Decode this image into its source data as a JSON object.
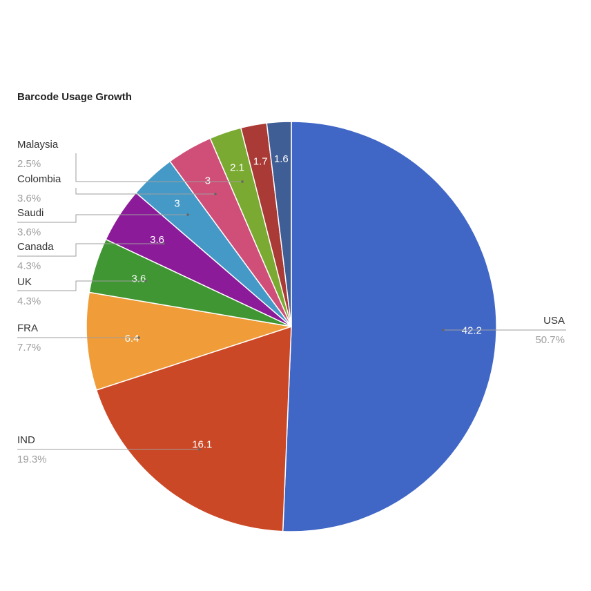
{
  "chart_data": {
    "type": "pie",
    "title": "Barcode Usage Growth",
    "slices": [
      {
        "label": "USA",
        "value": 42.2,
        "value_label": "42.2",
        "percent": "50.7%",
        "color": "#4066c6"
      },
      {
        "label": "IND",
        "value": 16.1,
        "value_label": "16.1",
        "percent": "19.3%",
        "color": "#cb4827"
      },
      {
        "label": "FRA",
        "value": 6.4,
        "value_label": "6.4",
        "percent": "7.7%",
        "color": "#f09c39"
      },
      {
        "label": "UK",
        "value": 3.6,
        "value_label": "3.6",
        "percent": "4.3%",
        "color": "#3f9632"
      },
      {
        "label": "Canada",
        "value": 3.6,
        "value_label": "3.6",
        "percent": "4.3%",
        "color": "#8c1b9a"
      },
      {
        "label": "Saudi",
        "value": 3,
        "value_label": "3",
        "percent": "3.6%",
        "color": "#4599c6"
      },
      {
        "label": "Colombia",
        "value": 3,
        "value_label": "3",
        "percent": "3.6%",
        "color": "#cf4f78"
      },
      {
        "label": "Malaysia",
        "value": 2.1,
        "value_label": "2.1",
        "percent": "2.5%",
        "color": "#7aaa32"
      },
      {
        "label": "",
        "value": 1.7,
        "value_label": "1.7",
        "percent": "",
        "color": "#a93a35"
      },
      {
        "label": "",
        "value": 1.6,
        "value_label": "1.6",
        "percent": "",
        "color": "#3f5e95"
      }
    ],
    "start_angle_deg": 0,
    "direction": "clockwise",
    "legend": "labeled-leader-lines"
  }
}
